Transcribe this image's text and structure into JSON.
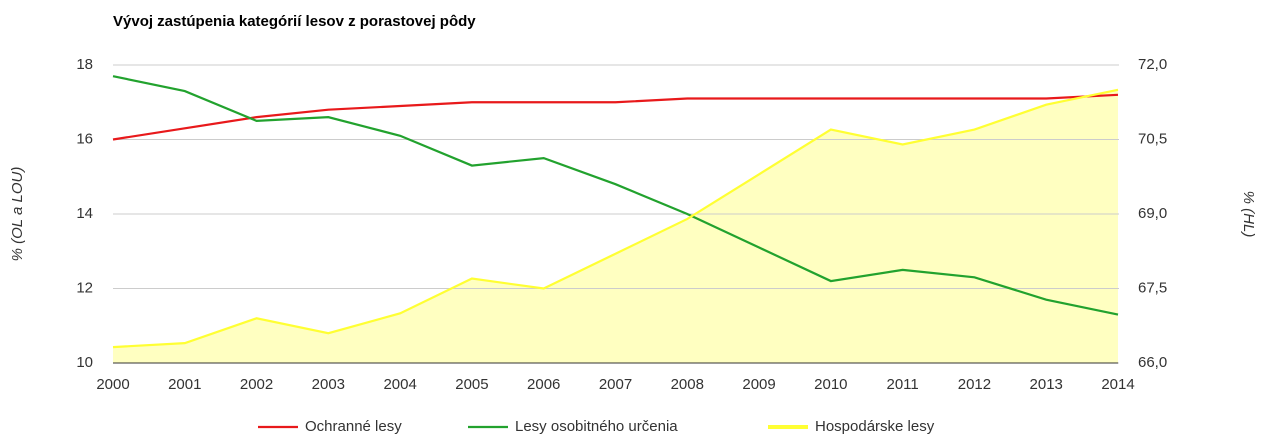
{
  "chart_data": {
    "type": "line",
    "title": "Vývoj zastúpenia kategórií lesov z porastovej pôdy",
    "y_label": "% (OL a LOU)",
    "y2_label": "% (HL)",
    "categories": [
      "2000",
      "2001",
      "2002",
      "2003",
      "2004",
      "2005",
      "2006",
      "2007",
      "2008",
      "2009",
      "2010",
      "2011",
      "2012",
      "2013",
      "2014"
    ],
    "ylim": [
      10,
      18
    ],
    "yticks": [
      10,
      12,
      14,
      16,
      18
    ],
    "y2lim": [
      66,
      72
    ],
    "y2ticks": [
      {
        "value": 66,
        "label": "66,0"
      },
      {
        "value": 67.5,
        "label": "67,5"
      },
      {
        "value": 69,
        "label": "69,0"
      },
      {
        "value": 70.5,
        "label": "70,5"
      },
      {
        "value": 72,
        "label": "72,0"
      }
    ],
    "grid": true,
    "legend": "bottom",
    "series": [
      {
        "name": "Ochranné lesy",
        "color": "#e8191b",
        "values": [
          16.0,
          16.3,
          16.6,
          16.8,
          16.9,
          17.0,
          17.0,
          17.0,
          17.1,
          17.1,
          17.1,
          17.1,
          17.1,
          17.1,
          17.2
        ]
      },
      {
        "name": "Lesy osobitného určenia",
        "color": "#22a22e",
        "values": [
          17.7,
          17.3,
          16.5,
          16.6,
          16.1,
          15.3,
          15.5,
          14.8,
          14.0,
          13.1,
          12.2,
          12.5,
          12.3,
          11.7,
          11.3
        ]
      },
      {
        "name": "Hospodárske lesy",
        "color": "#ffff33",
        "axis": "y2",
        "area": true,
        "values": [
          66.32,
          66.4,
          66.9,
          66.6,
          67.0,
          67.7,
          67.5,
          68.2,
          68.9,
          69.8,
          70.7,
          70.4,
          70.7,
          71.2,
          71.5
        ]
      }
    ]
  }
}
